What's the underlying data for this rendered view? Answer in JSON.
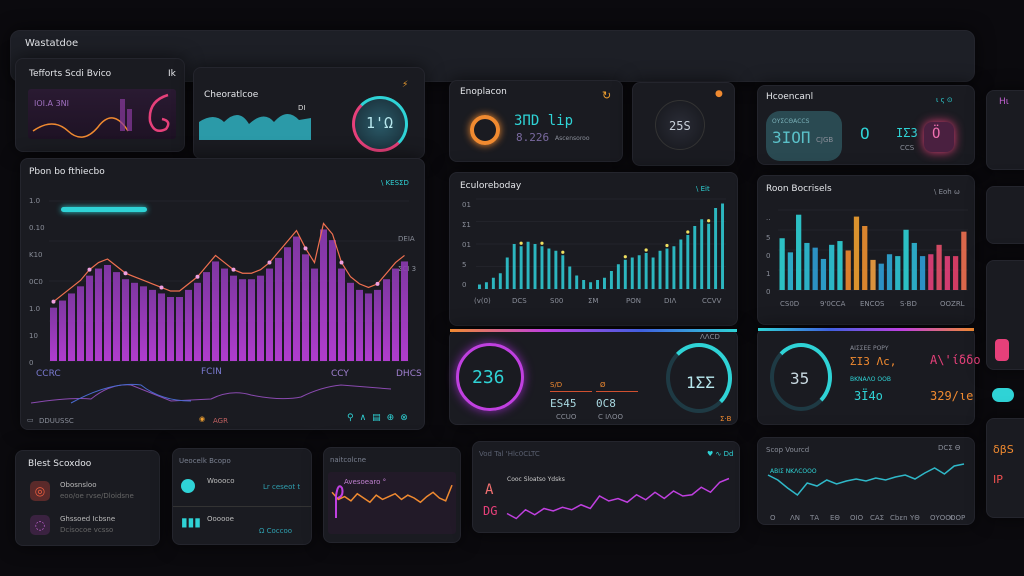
{
  "header": {
    "title": "Wastatdoe"
  },
  "colors": {
    "cyan": "#2fd3d6",
    "magenta": "#c040e0",
    "orange": "#f08a30",
    "pink": "#e6407a",
    "panel": "#1a1b21",
    "bg": "#0b0a0e"
  },
  "p1": {
    "title": "Tefforts Scdi Bvico",
    "icon_label": "Ik",
    "value": "ΙΟΙ.Α 3ΝΙ"
  },
  "p2": {
    "title": "Cheoratlcoe",
    "tag": "DΙ",
    "gauge_value": "1'Ω",
    "gauge_level": 0.3
  },
  "main": {
    "title": "Pbon bo fthiecbo",
    "action": "\\ KESΣD",
    "y_ticks": [
      "1.0",
      "0.10",
      "K10",
      "0C0",
      "1.0",
      "10",
      "0"
    ],
    "right_ticks": [
      "DEIA",
      "ΣCI 3"
    ],
    "x_labels": [
      "CCRC",
      "FCIN",
      "CCY",
      "DHCS"
    ],
    "footer_left": "DDUUSSC",
    "footer_mid": "AGR",
    "bars": [
      30,
      34,
      38,
      42,
      48,
      52,
      54,
      50,
      46,
      44,
      42,
      40,
      38,
      36,
      36,
      40,
      44,
      50,
      56,
      52,
      48,
      46,
      46,
      48,
      52,
      58,
      64,
      70,
      60,
      52,
      74,
      68,
      52,
      44,
      40,
      38,
      40,
      46,
      52,
      56
    ]
  },
  "p4": {
    "title": "Enoplacon",
    "value": "3ΠD lip",
    "sub": "8.226",
    "sub_note": "Ascensoroo"
  },
  "p5": {
    "value": "25S"
  },
  "p6": {
    "title": "Hcoencanl",
    "box_label": "OΥΣCΘΑCCS",
    "box_value": "3ΙΟΠ",
    "box_unit": "CJGB",
    "v1": "Ο",
    "v2": "ΙΣ3",
    "v2_sub": "CCS",
    "v3": "Ö"
  },
  "p7": {
    "title": "Eculoreboday",
    "action": "\\ Eit",
    "y_ticks": [
      "01",
      "Σ1",
      "01",
      "5",
      "0"
    ],
    "x_labels": [
      "(v(0)",
      "DCS",
      "S00",
      "ΣΜ",
      "PON",
      "DΙΛ",
      "CCVV"
    ],
    "bars": [
      4,
      6,
      10,
      14,
      28,
      40,
      38,
      42,
      40,
      38,
      36,
      34,
      30,
      20,
      12,
      8,
      6,
      8,
      10,
      16,
      22,
      26,
      28,
      30,
      32,
      28,
      34,
      36,
      38,
      44,
      48,
      56,
      62,
      58,
      72,
      76
    ]
  },
  "p8": {
    "title": "Roon Bocrisels",
    "action": "\\ Eoh ω",
    "y_ticks": [
      "··",
      "5",
      "0",
      "1",
      "0"
    ],
    "x_labels": [
      "CS0D",
      "9'0CCΑ",
      "ENCOS",
      "S·BD",
      "OOZRL"
    ],
    "bars": [
      55,
      40,
      80,
      50,
      45,
      33,
      48,
      52,
      42,
      78,
      68,
      32,
      28,
      38,
      36,
      64,
      50,
      36,
      38,
      48,
      36,
      36,
      62
    ],
    "bar_colors": [
      "#2fd3d6",
      "#2fb8d6",
      "#2fd3d6",
      "#2fc0d6",
      "#2f9fd6",
      "#2fa8d6",
      "#2fc8d6",
      "#2fd3d6",
      "#f08a30",
      "#f0a030",
      "#f09030",
      "#f0a040",
      "#2f9fd6",
      "#2fa8d6",
      "#2fc8d6",
      "#2fd3d6",
      "#2fb8d6",
      "#2f9fd6",
      "#e6407a",
      "#e6506a",
      "#e6407a",
      "#e6406a",
      "#f07050"
    ]
  },
  "p9": {
    "g1": "236",
    "g1_level": 0.85,
    "l1": "S/D",
    "l2": "Ø",
    "m1": "ES45",
    "m1_sub": "CCUO",
    "m2": "0C8",
    "m2_sub": "C ΙΛΟΟ",
    "g2": "1ΣΣ",
    "g2_level": 0.35,
    "corner": "ΛΛCD",
    "foot": "Σ·Β"
  },
  "p10": {
    "g": "35",
    "g_level": 0.4,
    "h1": "ΑΙΣΣΕΕ ΡΟΡΥ",
    "v1": "ΣΙ3 Λc,",
    "v2": "Α\\'ίδδο",
    "h2": "ΒΚΝΑΛΟ ΟΟΒ",
    "v3": "3Ϊ4ο",
    "v4": "329/ιe"
  },
  "p11": {
    "title": "Blest Scoxdoo",
    "items": [
      {
        "title": "Obosnsloo",
        "sub": "eoo/oe rvse/Dloidsne"
      },
      {
        "title": "Ghssoed Icbsne",
        "sub": "Dcisocoe vcsso"
      }
    ]
  },
  "p12": {
    "title": "Ueocelk Bcopo",
    "items": [
      {
        "title": "Woooco",
        "sub": "Lr ceseot t"
      },
      {
        "title": "Oooooe",
        "sub": "Ω Coccoo"
      }
    ]
  },
  "p13": {
    "title": "naitcolcne",
    "legend": "Avesoearo °",
    "line": [
      50,
      60,
      56,
      62,
      52,
      58,
      64,
      54,
      60,
      56,
      52,
      60,
      54,
      58,
      64,
      56,
      50,
      58,
      62,
      40
    ]
  },
  "p14": {
    "title": "Vod Tal 'Hlc0CLTC",
    "action": "♥ ∿ Dd",
    "legend": "Cooc Sloatso Ydsks",
    "badge1": "A",
    "badge2": "DG",
    "line": [
      20,
      12,
      26,
      18,
      28,
      24,
      30,
      26,
      34,
      28,
      48,
      40,
      44,
      38,
      50,
      42,
      54,
      44,
      56,
      48,
      50,
      62,
      54,
      70,
      76
    ]
  },
  "p15": {
    "title": "Scop Vourcd",
    "action": "DCΣ Θ",
    "legend": "ΑΒΙΣ ΝΚΛCOOO",
    "line": [
      70,
      60,
      44,
      30,
      54,
      48,
      60,
      52,
      58,
      62,
      58,
      64,
      60,
      66,
      70,
      62,
      74,
      84,
      72,
      88,
      92
    ],
    "x_labels": [
      "O",
      "ΛΝ",
      "ΤΑ",
      "ΕΘ",
      "ΟΙΟ",
      "CΑΣ",
      "Cbεn",
      "ΥΘ",
      "ΟΥΟΟΙ",
      "ΟΟΡ"
    ]
  },
  "right": {
    "t1": "Ηι",
    "t2": "δβS",
    "t3": "ΙΡ"
  }
}
